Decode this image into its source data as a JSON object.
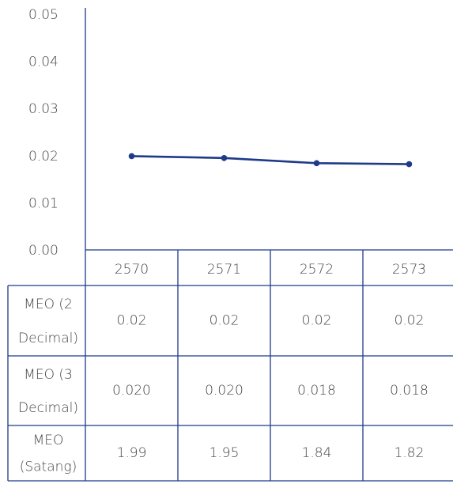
{
  "chart_data": {
    "type": "line",
    "categories": [
      "2570",
      "2571",
      "2572",
      "2573"
    ],
    "series": [
      {
        "color": "#1f3a8a",
        "values": [
          0.0199,
          0.0195,
          0.0184,
          0.0182
        ]
      }
    ],
    "ylim": [
      0,
      0.05
    ],
    "yticks": [
      {
        "value": 0,
        "label": "0.00"
      },
      0.01,
      0.02,
      0.03,
      0.04,
      0.05
    ]
  },
  "table": {
    "rows": [
      {
        "label": [
          "MEO (2",
          "Decimal)"
        ],
        "cells": [
          "0.02",
          "0.02",
          "0.02",
          "0.02"
        ]
      },
      {
        "label": [
          "MEO (3",
          "Decimal)"
        ],
        "cells": [
          "0.020",
          "0.020",
          "0.018",
          "0.018"
        ]
      },
      {
        "label": [
          "MEO",
          "(Satang)"
        ],
        "cells": [
          "1.99",
          "1.95",
          "1.84",
          "1.82"
        ]
      }
    ]
  }
}
